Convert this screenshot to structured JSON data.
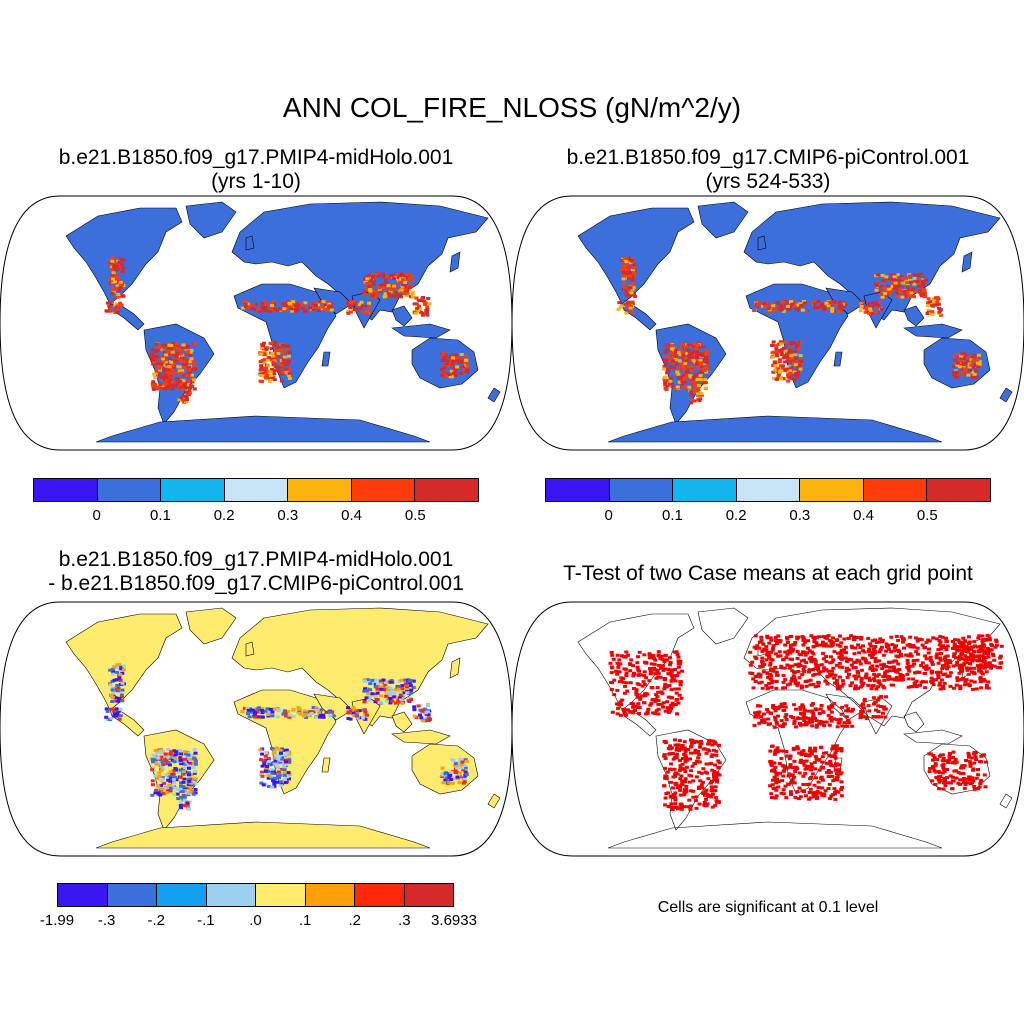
{
  "title": "ANN COL_FIRE_NLOSS (gN/m^2/y)",
  "panels": [
    {
      "line1": "b.e21.B1850.f09_g17.PMIP4-midHolo.001",
      "line2": "(yrs 1-10)"
    },
    {
      "line1": "b.e21.B1850.f09_g17.CMIP6-piControl.001",
      "line2": "(yrs 524-533)"
    },
    {
      "line1": "b.e21.B1850.f09_g17.PMIP4-midHolo.001",
      "line2": "- b.e21.B1850.f09_g17.CMIP6-piControl.001"
    },
    {
      "line1": "T-Test of two Case means at each grid point",
      "line2": ""
    }
  ],
  "colorbars": {
    "case": {
      "colors": [
        "#3b16f2",
        "#3c6fdc",
        "#14b4ee",
        "#c6e6f7",
        "#ffb30f",
        "#ff3c0a",
        "#d62a2a"
      ],
      "labels": [
        "0",
        "0.1",
        "0.2",
        "0.3",
        "0.4",
        "0.5"
      ]
    },
    "diff": {
      "colors": [
        "#3b16f2",
        "#3c6fdc",
        "#14a0f0",
        "#9cd0f0",
        "#ffeb6e",
        "#ffa00a",
        "#ff280a",
        "#d62a2a"
      ],
      "labels": [
        "-1.99",
        "-.3",
        "-.2",
        "-.1",
        ".0",
        ".1",
        ".2",
        ".3",
        "3.6933"
      ]
    }
  },
  "colors": {
    "ocean": "#ffffff",
    "land_case": "#3c6fdc",
    "land_diff": "#ffeb6e",
    "significant": "#ee0000",
    "fire_high": "#d62a2a",
    "fire_mid": "#ff3c0a"
  },
  "note": "Cells are significant at 0.1 level"
}
